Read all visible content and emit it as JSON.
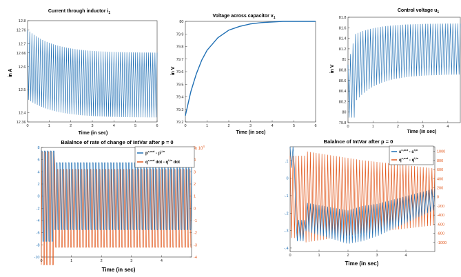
{
  "colors": {
    "blue": "#1f6fb4",
    "orange": "#e2581c",
    "axis": "#333333",
    "grid": "#f2f2f2"
  },
  "chart_data": [
    {
      "type": "line",
      "title": "Current through inductor i",
      "title_sub": "1",
      "xlabel": "Time (in sec)",
      "ylabel": "in A",
      "xlim": [
        0,
        6
      ],
      "ylim": [
        12.36,
        12.8
      ],
      "xticks": [
        0,
        1,
        2,
        3,
        4,
        5,
        6
      ],
      "yticks": [
        12.36,
        12.4,
        12.5,
        12.6,
        12.66,
        12.7,
        12.76,
        12.8
      ],
      "series": [
        {
          "name": "i1",
          "color": "blue",
          "envelope": {
            "upper_start": 12.76,
            "upper_end": 12.66,
            "lower_start": 12.46,
            "lower_end": 12.38,
            "period": 0.1
          }
        }
      ]
    },
    {
      "type": "line",
      "title": "Voltage across capacitor v",
      "title_sub": "1",
      "xlabel": "Time (in sec)",
      "ylabel": "in V",
      "xlim": [
        0,
        6
      ],
      "ylim": [
        79.2,
        80
      ],
      "xticks": [
        0,
        1,
        2,
        3,
        4,
        5,
        6
      ],
      "yticks": [
        79.2,
        79.3,
        79.4,
        79.5,
        79.6,
        79.7,
        79.8,
        79.9,
        80
      ],
      "series": [
        {
          "name": "v1",
          "color": "blue",
          "x": [
            0,
            0.25,
            0.5,
            0.75,
            1,
            1.5,
            2,
            2.5,
            3,
            3.5,
            4,
            4.5,
            5,
            6
          ],
          "y": [
            79.25,
            79.44,
            79.58,
            79.69,
            79.77,
            79.87,
            79.93,
            79.96,
            79.98,
            79.99,
            79.995,
            80,
            80,
            80
          ]
        }
      ]
    },
    {
      "type": "line",
      "title": "Control voltage u",
      "title_sub": "1",
      "xlabel": "Time (in sec)",
      "ylabel": "in V",
      "xlim": [
        0,
        4.5
      ],
      "ylim": [
        79.8,
        81.8
      ],
      "xticks": [
        0,
        1,
        2,
        3,
        4
      ],
      "yticks": [
        79.8,
        80,
        80.2,
        80.4,
        80.6,
        80.8,
        81,
        81.2,
        81.4,
        81.6,
        81.8
      ],
      "series": [
        {
          "name": "u1",
          "color": "blue",
          "envelope": {
            "upper_start": 81.4,
            "upper_end": 81.68,
            "lower_start": 80.0,
            "lower_end": 80.72,
            "period": 0.1
          }
        }
      ]
    },
    {
      "type": "line",
      "title": "Balalnce of rate of change of IntVar after p = 0",
      "xlabel": "Time (in sec)",
      "xlim": [
        0,
        5
      ],
      "ylim_left": [
        -10,
        8
      ],
      "ylim_right": [
        -4,
        5
      ],
      "right_axis_exponent": "x 10",
      "right_axis_exponent_power": "4",
      "xticks": [
        0,
        1,
        2,
        3,
        4
      ],
      "yticks_left": [
        -10,
        -8,
        -6,
        -4,
        -2,
        0,
        2,
        4,
        6,
        8
      ],
      "yticks_right": [
        -4,
        -3,
        -2,
        -1,
        0,
        1,
        2,
        3,
        4,
        5
      ],
      "legend": [
        {
          "label": "p",
          "sup": "c,out",
          "mid": " - p",
          "sup2": "l,in",
          "color": "blue"
        },
        {
          "label": "q",
          "sup": "c,out",
          "mid": " dot - q",
          "sup2": "l,in",
          "tail": " dot",
          "color": "orange"
        }
      ],
      "series": [
        {
          "name": "p balance",
          "axis": "left",
          "color": "blue",
          "band": [
            -5.5,
            5.5
          ],
          "period": 0.1
        },
        {
          "name": "q balance",
          "axis": "right",
          "color": "orange",
          "band": [
            -3.2,
            3.2
          ],
          "period": 0.1
        }
      ]
    },
    {
      "type": "line",
      "title": "Balalnce of IntVar after p = 0",
      "xlabel": "Time (in sec)",
      "xlim": [
        0,
        5
      ],
      "ylim_left": [
        -0.42,
        0.18
      ],
      "ylim_right": [
        -1200,
        1100
      ],
      "xticks": [
        0,
        1,
        2,
        3,
        4
      ],
      "yticks_left": [
        -0.4,
        -0.3,
        -0.2,
        -0.1,
        0,
        0.1
      ],
      "yticks_right": [
        -1000,
        -800,
        -600,
        -400,
        -200,
        0,
        200,
        400,
        600,
        800,
        1000
      ],
      "legend": [
        {
          "label": "s",
          "sup": "c,out",
          "mid": " - s",
          "sup2": "l,in",
          "color": "blue"
        },
        {
          "label": "q",
          "sup": "c,out",
          "mid": " - q",
          "sup2": "l,in",
          "color": "orange"
        }
      ],
      "series": [
        {
          "name": "s balance",
          "axis": "left",
          "color": "blue",
          "centre": [
            [
              0.5,
              -0.22
            ],
            [
              2.0,
              -0.28
            ],
            [
              3.0,
              -0.24
            ],
            [
              4.0,
              -0.18
            ],
            [
              5.0,
              -0.12
            ]
          ],
          "amp": [
            [
              0.5,
              0.08
            ],
            [
              2.5,
              0.1
            ],
            [
              5.0,
              0.06
            ]
          ],
          "period": 0.1
        },
        {
          "name": "q balance",
          "axis": "right",
          "color": "orange",
          "centre": [
            [
              0.5,
              0
            ],
            [
              5.0,
              0
            ]
          ],
          "amp": [
            [
              0.5,
              1000
            ],
            [
              2.5,
              800
            ],
            [
              5.0,
              620
            ]
          ],
          "period": 0.1
        }
      ]
    }
  ]
}
